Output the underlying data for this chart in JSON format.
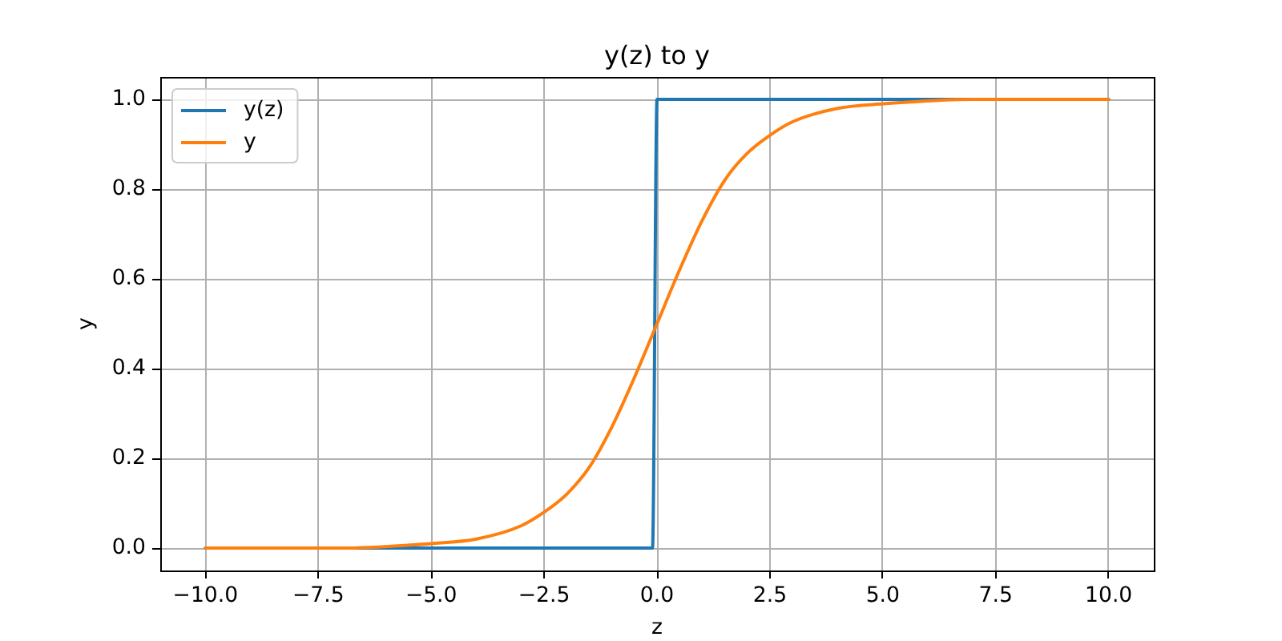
{
  "chart_data": {
    "type": "line",
    "title": "y(z) to y",
    "xlabel": "z",
    "ylabel": "y",
    "xlim": [
      -11,
      11
    ],
    "ylim": [
      -0.05,
      1.05
    ],
    "xticks": [
      {
        "value": -10,
        "label": "−10.0"
      },
      {
        "value": -7.5,
        "label": "−7.5"
      },
      {
        "value": -5,
        "label": "−5.0"
      },
      {
        "value": -2.5,
        "label": "−2.5"
      },
      {
        "value": 0,
        "label": "0.0"
      },
      {
        "value": 2.5,
        "label": "2.5"
      },
      {
        "value": 5,
        "label": "5.0"
      },
      {
        "value": 7.5,
        "label": "7.5"
      },
      {
        "value": 10,
        "label": "10.0"
      }
    ],
    "yticks": [
      {
        "value": 0,
        "label": "0.0"
      },
      0.2,
      0.4,
      0.6,
      0.8,
      {
        "value": 1,
        "label": "1.0"
      }
    ],
    "grid": true,
    "legend": "top left",
    "series": [
      {
        "name": "y(z)",
        "color": "#1f77b4",
        "x": [
          -10,
          -0.1,
          0,
          10
        ],
        "values": [
          0,
          0,
          1,
          1
        ]
      },
      {
        "name": "y",
        "color": "#ff7f0e",
        "x": [
          -10,
          -7,
          -5,
          -4,
          -3,
          -2.5,
          -2,
          -1.5,
          -1,
          -0.5,
          0,
          0.5,
          1,
          1.5,
          2,
          2.5,
          3,
          4,
          5,
          7,
          10
        ],
        "values": [
          0,
          0,
          0.01,
          0.02,
          0.05,
          0.08,
          0.12,
          0.18,
          0.27,
          0.38,
          0.5,
          0.62,
          0.73,
          0.82,
          0.88,
          0.92,
          0.95,
          0.98,
          0.99,
          1,
          1
        ]
      }
    ]
  }
}
